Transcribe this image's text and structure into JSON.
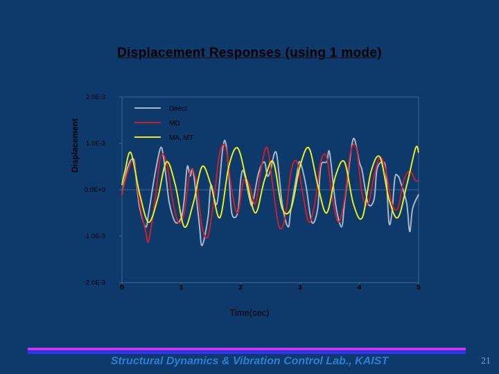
{
  "slide": {
    "footer": "Structural Dynamics & Vibration Control Lab., KAIST",
    "page_number": "21"
  },
  "colors": {
    "background": "#0d3a6b",
    "plot_background": "#0d3a6b",
    "direct": "#a8b6c8",
    "md": "#cc1f2a",
    "ma_mt": "#e8ee22",
    "footer_bar_magenta": "#cc33ff",
    "footer_bar_blue": "#3333ff"
  },
  "chart_data": {
    "type": "line",
    "title": "Displacement Responses (using 1 mode)",
    "xlabel": "Time(sec)",
    "ylabel": "Displacement",
    "xlim": [
      0,
      5
    ],
    "ylim": [
      -0.002,
      0.002
    ],
    "xticks": [
      "0",
      "1",
      "2",
      "3",
      "4",
      "5"
    ],
    "yticks": [
      "2.0E-3",
      "1.0E-3",
      "0.0E+0",
      "-1.0E-3",
      "-2.0E-3"
    ],
    "legend": {
      "position": "top-left"
    },
    "grid": false,
    "series": [
      {
        "name": "Direct",
        "color": "#a8b6c8",
        "x": [
          0,
          0.1,
          0.2,
          0.25,
          0.3,
          0.4,
          0.45,
          0.55,
          0.65,
          0.7,
          0.75,
          0.8,
          0.9,
          1.0,
          1.05,
          1.1,
          1.15,
          1.2,
          1.3,
          1.35,
          1.45,
          1.5,
          1.6,
          1.7,
          1.75,
          1.8,
          1.85,
          1.95,
          2.0,
          2.05,
          2.15,
          2.2,
          2.3,
          2.4,
          2.45,
          2.5,
          2.6,
          2.7,
          2.8,
          2.85,
          2.95,
          3.0,
          3.1,
          3.2,
          3.3,
          3.35,
          3.45,
          3.5,
          3.6,
          3.7,
          3.75,
          3.8,
          3.9,
          4.0,
          4.05,
          4.15,
          4.25,
          4.3,
          4.4,
          4.45,
          4.5,
          4.55,
          4.6,
          4.65,
          4.7,
          4.8,
          4.85,
          4.9,
          5.0
        ],
        "y": [
          -0.0001,
          0.0005,
          0.00065,
          0.0001,
          -0.0004,
          -0.0008,
          -0.0005,
          0.0003,
          0.0009,
          0.0007,
          0.0002,
          -0.0003,
          -0.0007,
          -0.0006,
          -0.0002,
          0.0005,
          0.0003,
          0.0004,
          -0.0007,
          -0.0012,
          -0.0006,
          0.0001,
          -0.0003,
          0.0009,
          0.001,
          0.0004,
          -0.0005,
          -0.0005,
          0.0002,
          0.0004,
          -0.0002,
          -0.0003,
          0.00035,
          0.0006,
          0.0003,
          0.0004,
          0.0008,
          -0.0003,
          -0.0008,
          -0.0004,
          0.00035,
          0.0006,
          0.0001,
          -0.0007,
          -0.0004,
          0.0005,
          0.0006,
          0.0008,
          -0.0003,
          -0.0008,
          -0.0003,
          0.0002,
          0.0011,
          0.0006,
          0.0004,
          -0.0003,
          -0.0002,
          0.00045,
          0.0006,
          0.0004,
          -0.0007,
          -0.0005,
          0.00025,
          0.0003,
          0.00015,
          -0.0003,
          -0.0009,
          -0.0004,
          -0.0001
        ]
      },
      {
        "name": "MD",
        "color": "#cc1f2a",
        "x": [
          0,
          0.1,
          0.2,
          0.3,
          0.4,
          0.45,
          0.55,
          0.65,
          0.75,
          0.85,
          0.95,
          1.05,
          1.15,
          1.25,
          1.35,
          1.45,
          1.55,
          1.65,
          1.75,
          1.85,
          1.95,
          2.05,
          2.15,
          2.25,
          2.35,
          2.45,
          2.55,
          2.65,
          2.75,
          2.85,
          2.95,
          3.05,
          3.15,
          3.25,
          3.35,
          3.45,
          3.55,
          3.65,
          3.75,
          3.85,
          3.95,
          4.05,
          4.15,
          4.25,
          4.35,
          4.45,
          4.55,
          4.65,
          4.75,
          4.85,
          4.95,
          5.0
        ],
        "y": [
          -0.0001,
          0.0004,
          0.0006,
          -0.0003,
          -0.0009,
          -0.0011,
          -0.0003,
          0.0007,
          0.0006,
          -0.0002,
          -0.0007,
          -0.0005,
          0.0004,
          0.0002,
          -0.0008,
          -0.001,
          -0.0002,
          0.0008,
          0.0009,
          0.0,
          -0.0005,
          0.0002,
          0.0001,
          -0.0003,
          0.0005,
          0.0009,
          0.0,
          -0.0008,
          -0.0006,
          0.0004,
          0.0006,
          -0.0001,
          -0.0007,
          -0.0003,
          0.0006,
          0.0007,
          -0.0002,
          -0.0007,
          -0.0002,
          0.0008,
          0.0009,
          -0.0001,
          -0.0003,
          0.0003,
          0.0007,
          0.0004,
          -0.0003,
          -0.0004,
          0.0002,
          0.0004,
          0.0002,
          0.0002
        ]
      },
      {
        "name": "MA, MT",
        "color": "#e8ee22",
        "x": [
          0,
          0.05,
          0.15,
          0.3,
          0.45,
          0.6,
          0.75,
          0.9,
          1.05,
          1.2,
          1.35,
          1.5,
          1.65,
          1.8,
          1.95,
          2.1,
          2.25,
          2.4,
          2.55,
          2.7,
          2.85,
          3.0,
          3.15,
          3.3,
          3.45,
          3.6,
          3.75,
          3.9,
          4.05,
          4.2,
          4.35,
          4.5,
          4.65,
          4.8,
          4.95,
          5.0
        ],
        "y": [
          0.0001,
          0.0004,
          0.0008,
          -0.0001,
          -0.0007,
          -0.0002,
          0.0006,
          0.0001,
          -0.0008,
          -0.0003,
          0.0005,
          0.0001,
          -0.0006,
          0.0005,
          0.0009,
          0.0002,
          -0.0005,
          0.0002,
          0.0006,
          -0.0004,
          -0.0004,
          0.0005,
          0.0009,
          0.0001,
          -0.0005,
          0.0003,
          0.0006,
          -0.0003,
          -0.0006,
          0.0004,
          0.0007,
          -0.0002,
          -0.0006,
          0.0001,
          0.0009,
          0.0008
        ]
      }
    ]
  }
}
